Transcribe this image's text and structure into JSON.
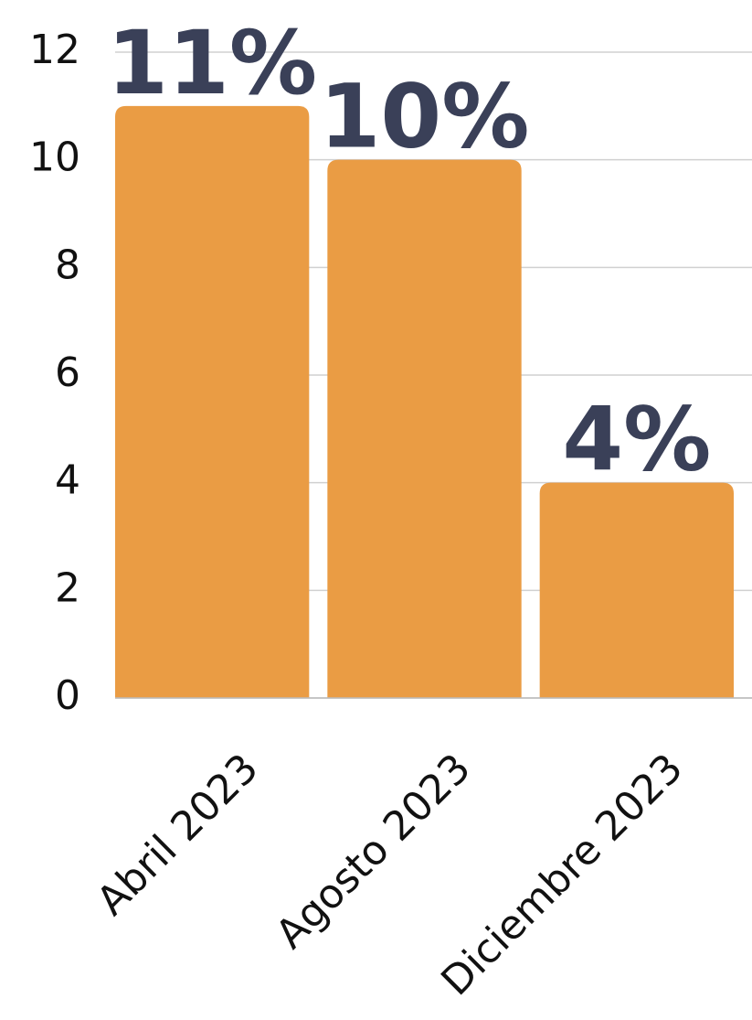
{
  "chart_data": {
    "type": "bar",
    "categories": [
      "Abril 2023",
      "Agosto 2023",
      "Diciembre 2023"
    ],
    "values": [
      11,
      10,
      4
    ],
    "value_labels": [
      "11%",
      "10%",
      "4%"
    ],
    "color": "#ea9c44",
    "ylim": [
      0,
      12
    ],
    "yticks": [
      0,
      2,
      4,
      6,
      8,
      10,
      12
    ],
    "grid": true
  }
}
